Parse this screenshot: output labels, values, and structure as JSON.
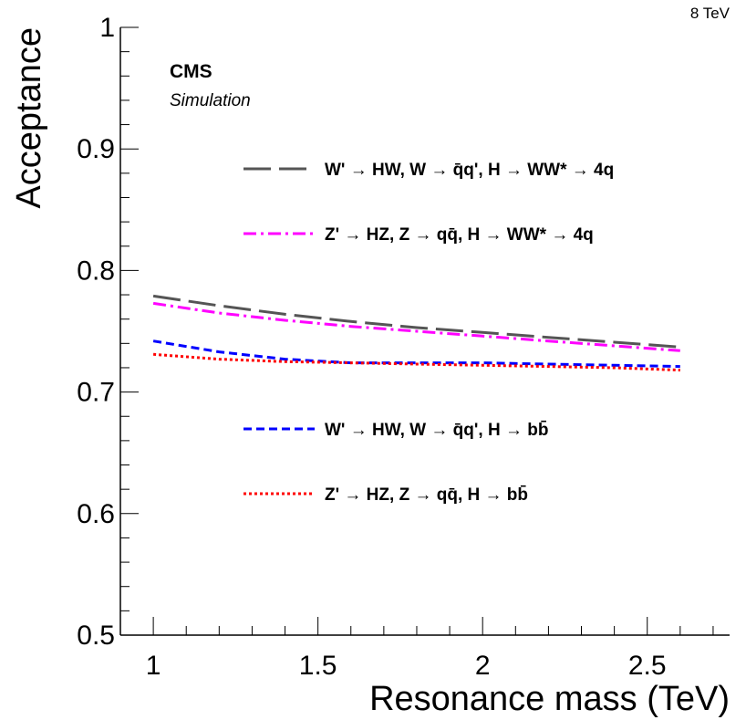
{
  "chart_data": {
    "type": "line",
    "xlabel": "Resonance mass (TeV)",
    "ylabel": "Acceptance",
    "xlim": [
      0.9,
      2.75
    ],
    "ylim": [
      0.5,
      1.0
    ],
    "x_ticks": [
      1,
      1.5,
      2,
      2.5
    ],
    "x_tick_labels": [
      "1",
      "1.5",
      "2",
      "2.5"
    ],
    "y_ticks": [
      0.5,
      0.6,
      0.7,
      0.8,
      0.9,
      1.0
    ],
    "y_tick_labels": [
      "0.5",
      "0.6",
      "0.7",
      "0.8",
      "0.9",
      "1"
    ],
    "x": [
      1.0,
      1.2,
      1.4,
      1.6,
      1.8,
      2.0,
      2.2,
      2.4,
      2.6
    ],
    "series": [
      {
        "name": "W' → HW, W → q̄q', H → WW* → 4q",
        "color": "#555555",
        "dash": "long-dash",
        "values": [
          0.779,
          0.771,
          0.764,
          0.758,
          0.753,
          0.749,
          0.745,
          0.741,
          0.737
        ]
      },
      {
        "name": "Z' → HZ, Z → qq̄, H → WW* → 4q",
        "color": "#ff00ff",
        "dash": "dash-dot",
        "values": [
          0.773,
          0.765,
          0.759,
          0.754,
          0.75,
          0.746,
          0.742,
          0.738,
          0.734
        ]
      },
      {
        "name": "W' → HW, W → q̄q', H → bb̄",
        "color": "#0000ff",
        "dash": "short-dash",
        "values": [
          0.742,
          0.733,
          0.727,
          0.724,
          0.724,
          0.724,
          0.723,
          0.722,
          0.721
        ]
      },
      {
        "name": "Z' → HZ, Z → qq̄, H → bb̄",
        "color": "#ff0000",
        "dash": "dotted",
        "values": [
          0.731,
          0.727,
          0.725,
          0.724,
          0.723,
          0.722,
          0.721,
          0.72,
          0.718
        ]
      }
    ],
    "legend_placement": "inside",
    "grid": false,
    "annotations": {
      "experiment": "CMS",
      "label": "Simulation",
      "energy": "8 TeV"
    }
  }
}
